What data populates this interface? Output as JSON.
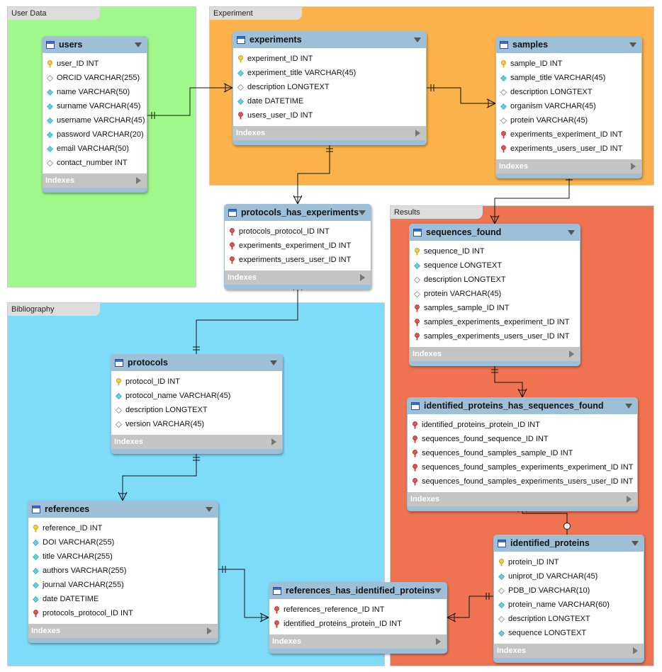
{
  "regions": [
    {
      "label": "User Data"
    },
    {
      "label": "Experiment"
    },
    {
      "label": "Results"
    },
    {
      "label": "Bibliography"
    }
  ],
  "tables": [
    {
      "name": "users",
      "footer": "Indexes",
      "columns": [
        {
          "text": "user_ID INT",
          "icon": "primary"
        },
        {
          "text": "ORCID VARCHAR(255)",
          "icon": "empty"
        },
        {
          "text": "name VARCHAR(50)",
          "icon": "filled"
        },
        {
          "text": "surname VARCHAR(45)",
          "icon": "filled"
        },
        {
          "text": "username VARCHAR(45)",
          "icon": "filled"
        },
        {
          "text": "password VARCHAR(20)",
          "icon": "filled"
        },
        {
          "text": "email VARCHAR(50)",
          "icon": "filled"
        },
        {
          "text": "contact_number INT",
          "icon": "empty"
        }
      ]
    },
    {
      "name": "experiments",
      "footer": "Indexes",
      "columns": [
        {
          "text": "experiment_ID INT",
          "icon": "primary"
        },
        {
          "text": "experiment_title VARCHAR(45)",
          "icon": "filled"
        },
        {
          "text": "description LONGTEXT",
          "icon": "empty"
        },
        {
          "text": "date DATETIME",
          "icon": "filled"
        },
        {
          "text": "users_user_ID INT",
          "icon": "foreign"
        }
      ]
    },
    {
      "name": "samples",
      "footer": "Indexes",
      "columns": [
        {
          "text": "sample_ID INT",
          "icon": "primary"
        },
        {
          "text": "sample_title VARCHAR(45)",
          "icon": "filled"
        },
        {
          "text": "description LONGTEXT",
          "icon": "empty"
        },
        {
          "text": "organism VARCHAR(45)",
          "icon": "filled"
        },
        {
          "text": "protein VARCHAR(45)",
          "icon": "empty"
        },
        {
          "text": "experiments_experiment_ID INT",
          "icon": "foreign"
        },
        {
          "text": "experiments_users_user_ID INT",
          "icon": "foreign"
        }
      ]
    },
    {
      "name": "protocols_has_experiments",
      "footer": "Indexes",
      "columns": [
        {
          "text": "protocols_protocol_ID INT",
          "icon": "foreign"
        },
        {
          "text": "experiments_experiment_ID INT",
          "icon": "foreign"
        },
        {
          "text": "experiments_users_user_ID INT",
          "icon": "foreign"
        }
      ]
    },
    {
      "name": "sequences_found",
      "footer": "Indexes",
      "columns": [
        {
          "text": "sequence_ID INT",
          "icon": "primary"
        },
        {
          "text": "sequence LONGTEXT",
          "icon": "filled"
        },
        {
          "text": "description LONGTEXT",
          "icon": "empty"
        },
        {
          "text": "protein VARCHAR(45)",
          "icon": "empty"
        },
        {
          "text": "samples_sample_ID INT",
          "icon": "foreign"
        },
        {
          "text": "samples_experiments_experiment_ID INT",
          "icon": "foreign"
        },
        {
          "text": "samples_experiments_users_user_ID INT",
          "icon": "foreign"
        }
      ]
    },
    {
      "name": "protocols",
      "footer": "Indexes",
      "columns": [
        {
          "text": "protocol_ID INT",
          "icon": "primary"
        },
        {
          "text": "protocol_name VARCHAR(45)",
          "icon": "filled"
        },
        {
          "text": "description LONGTEXT",
          "icon": "empty"
        },
        {
          "text": "version VARCHAR(45)",
          "icon": "empty"
        }
      ]
    },
    {
      "name": "identified_proteins_has_sequences_found",
      "footer": "Indexes",
      "columns": [
        {
          "text": "identified_proteins_protein_ID INT",
          "icon": "foreign"
        },
        {
          "text": "sequences_found_sequence_ID INT",
          "icon": "foreign"
        },
        {
          "text": "sequences_found_samples_sample_ID INT",
          "icon": "foreign"
        },
        {
          "text": "sequences_found_samples_experiments_experiment_ID INT",
          "icon": "foreign"
        },
        {
          "text": "sequences_found_samples_experiments_users_user_ID INT",
          "icon": "foreign"
        }
      ]
    },
    {
      "name": "references",
      "footer": "Indexes",
      "columns": [
        {
          "text": "reference_ID INT",
          "icon": "primary"
        },
        {
          "text": "DOI VARCHAR(255)",
          "icon": "filled"
        },
        {
          "text": "title VARCHAR(255)",
          "icon": "filled"
        },
        {
          "text": "authors VARCHAR(255)",
          "icon": "filled"
        },
        {
          "text": "journal VARCHAR(255)",
          "icon": "filled"
        },
        {
          "text": "date DATETIME",
          "icon": "filled"
        },
        {
          "text": "protocols_protocol_ID INT",
          "icon": "foreign"
        }
      ]
    },
    {
      "name": "references_has_identified_proteins",
      "footer": "Indexes",
      "columns": [
        {
          "text": "references_reference_ID INT",
          "icon": "foreign"
        },
        {
          "text": "identified_proteins_protein_ID INT",
          "icon": "foreign"
        }
      ]
    },
    {
      "name": "identified_proteins",
      "footer": "Indexes",
      "columns": [
        {
          "text": "protein_ID INT",
          "icon": "primary"
        },
        {
          "text": "uniprot_ID VARCHAR(45)",
          "icon": "filled"
        },
        {
          "text": "PDB_ID VARCHAR(10)",
          "icon": "empty"
        },
        {
          "text": "protein_name VARCHAR(60)",
          "icon": "filled"
        },
        {
          "text": "description LONGTEXT",
          "icon": "empty"
        },
        {
          "text": "sequence LONGTEXT",
          "icon": "filled"
        }
      ]
    }
  ]
}
